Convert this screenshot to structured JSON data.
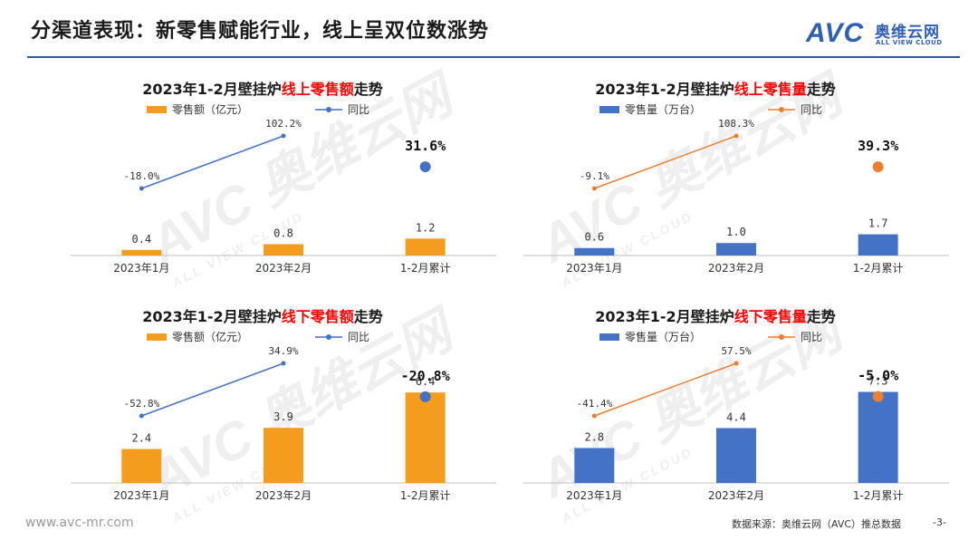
{
  "header": {
    "title": "分渠道表现：新零售赋能行业，线上呈双位数涨势",
    "logo_text": "AVC",
    "logo_cn": "奥维云网",
    "logo_en": "ALL VIEW CLOUD"
  },
  "watermark": {
    "main": "AVC 奥维云网",
    "sub": "ALL VIEW CLOUD"
  },
  "footer": {
    "url": "www.avc-mr.com",
    "source": "数据来源：奥维云网（AVC）推总数据",
    "page": "-3-"
  },
  "colors": {
    "orange": "#f39c1e",
    "blue": "#4472c4",
    "line_blue": "#4472c4",
    "line_orange": "#ed7d31",
    "highlight": "#ff0000"
  },
  "chart_data": [
    {
      "type": "bar",
      "title_prefix": "2023年1-2月壁挂炉",
      "title_highlight": "线上零售额",
      "title_suffix": "走势",
      "bar_color": "#f39c1e",
      "line_color": "#4472c4",
      "categories": [
        "2023年1月",
        "2023年2月",
        "1-2月累计"
      ],
      "series": [
        {
          "name": "零售额（亿元）",
          "kind": "bar",
          "values": [
            0.4,
            0.8,
            1.2
          ],
          "labels": [
            "0.4",
            "0.8",
            "1.2"
          ]
        },
        {
          "name": "同比",
          "kind": "line",
          "values": [
            -18.0,
            102.2,
            31.6
          ],
          "labels": [
            "-18.0%",
            "102.2%",
            "31.6%"
          ]
        }
      ],
      "bar_max": 7.5
    },
    {
      "type": "bar",
      "title_prefix": "2023年1-2月壁挂炉",
      "title_highlight": "线上零售量",
      "title_suffix": "走势",
      "bar_color": "#4472c4",
      "line_color": "#ed7d31",
      "categories": [
        "2023年1月",
        "2023年2月",
        "1-2月累计"
      ],
      "series": [
        {
          "name": "零售量（万台）",
          "kind": "bar",
          "values": [
            0.6,
            1.0,
            1.7
          ],
          "labels": [
            "0.6",
            "1.0",
            "1.7"
          ]
        },
        {
          "name": "同比",
          "kind": "line",
          "values": [
            -9.1,
            108.3,
            39.3
          ],
          "labels": [
            "-9.1%",
            "108.3%",
            "39.3%"
          ]
        }
      ],
      "bar_max": 8.5
    },
    {
      "type": "bar",
      "title_prefix": "2023年1-2月壁挂炉",
      "title_highlight": "线下零售额",
      "title_suffix": "走势",
      "bar_color": "#f39c1e",
      "line_color": "#4472c4",
      "categories": [
        "2023年1月",
        "2023年2月",
        "1-2月累计"
      ],
      "series": [
        {
          "name": "零售额（亿元）",
          "kind": "bar",
          "values": [
            2.4,
            3.9,
            6.4
          ],
          "labels": [
            "2.4",
            "3.9",
            "6.4"
          ]
        },
        {
          "name": "同比",
          "kind": "line",
          "values": [
            -52.8,
            34.9,
            -20.8
          ],
          "labels": [
            "-52.8%",
            "34.9%",
            "-20.8%"
          ]
        }
      ],
      "bar_max": 7.5
    },
    {
      "type": "bar",
      "title_prefix": "2023年1-2月壁挂炉",
      "title_highlight": "线下零售量",
      "title_suffix": "走势",
      "bar_color": "#4472c4",
      "line_color": "#ed7d31",
      "categories": [
        "2023年1月",
        "2023年2月",
        "1-2月累计"
      ],
      "series": [
        {
          "name": "零售量（万台）",
          "kind": "bar",
          "values": [
            2.8,
            4.4,
            7.3
          ],
          "labels": [
            "2.8",
            "4.4",
            "7.3"
          ]
        },
        {
          "name": "同比",
          "kind": "line",
          "values": [
            -41.4,
            57.5,
            -5.0
          ],
          "labels": [
            "-41.4%",
            "57.5%",
            "-5.0%"
          ]
        }
      ],
      "bar_max": 8.5
    }
  ]
}
